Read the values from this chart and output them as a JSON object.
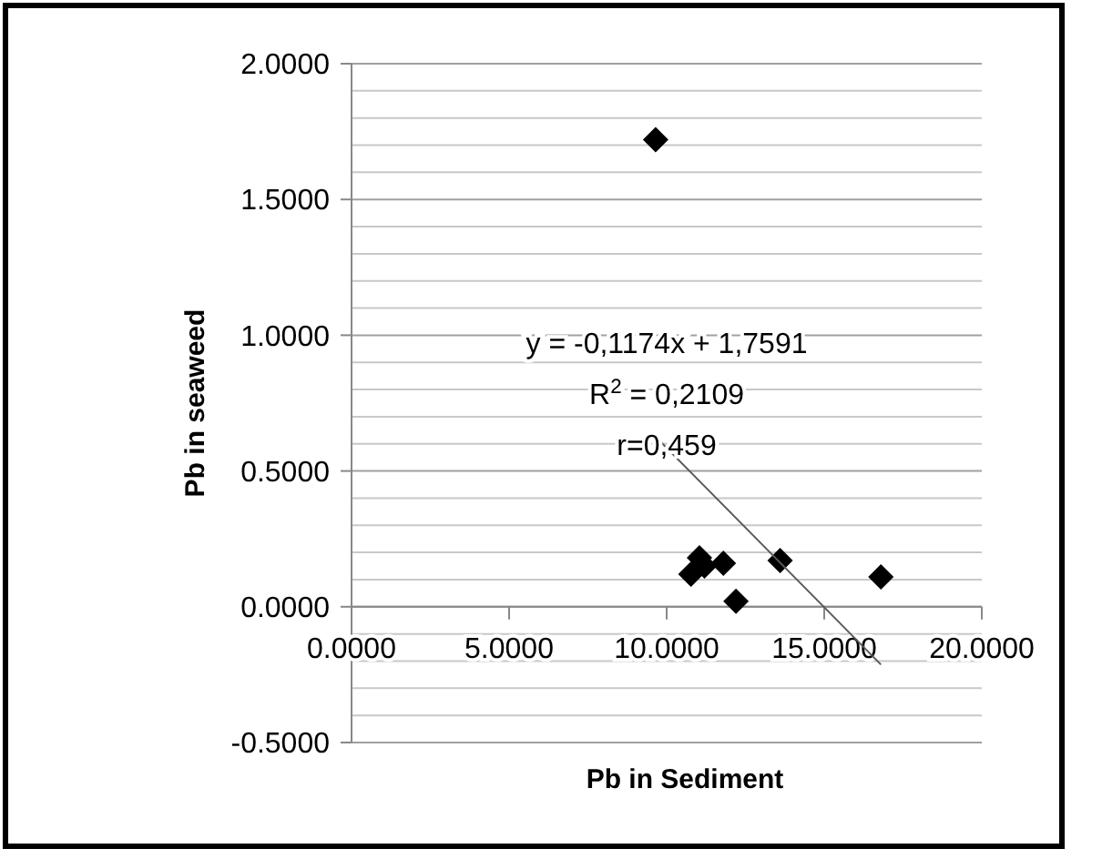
{
  "chart_data": {
    "type": "scatter",
    "xlabel": "Pb in Sediment",
    "ylabel": "Pb in seaweed",
    "xlim": [
      0,
      20
    ],
    "xticks": [
      {
        "value": 0,
        "label": "0.0000"
      },
      {
        "value": 5,
        "label": "5.0000"
      },
      {
        "value": 10,
        "label": "10.0000"
      },
      {
        "value": 15,
        "label": "15.0000"
      },
      {
        "value": 20,
        "label": "20.0000"
      }
    ],
    "ylim": [
      -0.5,
      2
    ],
    "yticks": [
      {
        "value": -0.5,
        "label": "-0.5000"
      },
      {
        "value": -0.4,
        "label": null
      },
      {
        "value": -0.3,
        "label": null
      },
      {
        "value": -0.2,
        "label": null
      },
      {
        "value": -0.1,
        "label": null
      },
      {
        "value": 0,
        "label": "0.0000"
      },
      {
        "value": 0.1,
        "label": null
      },
      {
        "value": 0.2,
        "label": null
      },
      {
        "value": 0.3,
        "label": null
      },
      {
        "value": 0.4,
        "label": null
      },
      {
        "value": 0.5,
        "label": "0.5000"
      },
      {
        "value": 0.6,
        "label": null
      },
      {
        "value": 0.7,
        "label": null
      },
      {
        "value": 0.8,
        "label": null
      },
      {
        "value": 0.9,
        "label": null
      },
      {
        "value": 1,
        "label": "1.0000"
      },
      {
        "value": 1.1,
        "label": null
      },
      {
        "value": 1.2,
        "label": null
      },
      {
        "value": 1.3,
        "label": null
      },
      {
        "value": 1.4,
        "label": null
      },
      {
        "value": 1.5,
        "label": "1.5000"
      },
      {
        "value": 1.6,
        "label": null
      },
      {
        "value": 1.7,
        "label": null
      },
      {
        "value": 1.8,
        "label": null
      },
      {
        "value": 1.9,
        "label": null
      },
      {
        "value": 2,
        "label": "2.0000"
      }
    ],
    "grid": "y",
    "series": [
      {
        "color": "#000000",
        "marker": "diamond",
        "x": [
          9.65,
          10.77,
          11.04,
          11.2,
          11.8,
          12.2,
          13.6,
          16.8
        ],
        "values": [
          1.72,
          0.12,
          0.18,
          0.15,
          0.16,
          0.02,
          0.17,
          0.11
        ]
      },
      {
        "type": "line",
        "color": "#595959",
        "marker": "none",
        "line_style": "solid",
        "x": [
          9.65,
          16.8
        ],
        "values": [
          0.626,
          -0.213
        ]
      }
    ],
    "annotations": [
      "y = -0,1174x + 1,7591",
      "R$^{2}$ = 0,2109",
      "r=0,459"
    ]
  }
}
